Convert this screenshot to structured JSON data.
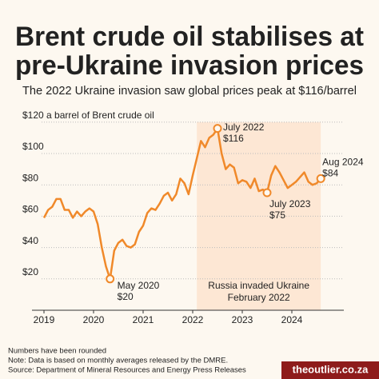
{
  "chart_data": {
    "type": "line",
    "title": [
      "Brent crude oil stabilises at",
      "pre-Ukraine invasion prices"
    ],
    "subtitle": "The 2022 Ukraine invasion saw global prices peak at $116/barrel",
    "x": [
      "2019-01",
      "2019-02",
      "2019-03",
      "2019-04",
      "2019-05",
      "2019-06",
      "2019-07",
      "2019-08",
      "2019-09",
      "2019-10",
      "2019-11",
      "2019-12",
      "2020-01",
      "2020-02",
      "2020-03",
      "2020-04",
      "2020-05",
      "2020-06",
      "2020-07",
      "2020-08",
      "2020-09",
      "2020-10",
      "2020-11",
      "2020-12",
      "2021-01",
      "2021-02",
      "2021-03",
      "2021-04",
      "2021-05",
      "2021-06",
      "2021-07",
      "2021-08",
      "2021-09",
      "2021-10",
      "2021-11",
      "2021-12",
      "2022-01",
      "2022-02",
      "2022-03",
      "2022-04",
      "2022-05",
      "2022-06",
      "2022-07",
      "2022-08",
      "2022-09",
      "2022-10",
      "2022-11",
      "2022-12",
      "2023-01",
      "2023-02",
      "2023-03",
      "2023-04",
      "2023-05",
      "2023-06",
      "2023-07",
      "2023-08",
      "2023-09",
      "2023-10",
      "2023-11",
      "2023-12",
      "2024-01",
      "2024-02",
      "2024-03",
      "2024-04",
      "2024-05",
      "2024-06",
      "2024-07",
      "2024-08"
    ],
    "series": [
      {
        "name": "Brent crude oil",
        "color": "#f0892a",
        "values": [
          59,
          64,
          66,
          71,
          71,
          64,
          64,
          59,
          63,
          60,
          63,
          65,
          63,
          55,
          40,
          28,
          20,
          38,
          43,
          45,
          41,
          40,
          42,
          50,
          54,
          62,
          65,
          64,
          68,
          73,
          75,
          70,
          74,
          84,
          81,
          74,
          86,
          97,
          108,
          104,
          110,
          112,
          116,
          100,
          90,
          93,
          91,
          81,
          83,
          82,
          78,
          84,
          76,
          77,
          75,
          86,
          92,
          88,
          83,
          78,
          80,
          82,
          85,
          88,
          82,
          80,
          81,
          84
        ],
        "value_labels": [
          null,
          null,
          null,
          null,
          null,
          null,
          null,
          null,
          null,
          null,
          null,
          null,
          null,
          null,
          null,
          null,
          "$20",
          null,
          null,
          null,
          null,
          null,
          null,
          null,
          null,
          null,
          null,
          null,
          null,
          null,
          null,
          null,
          null,
          null,
          null,
          null,
          null,
          null,
          null,
          null,
          null,
          null,
          "$116",
          null,
          null,
          null,
          null,
          null,
          null,
          null,
          null,
          null,
          null,
          null,
          "$75",
          null,
          null,
          null,
          null,
          null,
          null,
          null,
          null,
          null,
          null,
          null,
          null,
          "$84"
        ],
        "point_notes": [
          null,
          null,
          null,
          null,
          null,
          null,
          null,
          null,
          null,
          null,
          null,
          null,
          null,
          null,
          null,
          null,
          "May 2020",
          null,
          null,
          null,
          null,
          null,
          null,
          null,
          null,
          null,
          null,
          null,
          null,
          null,
          null,
          null,
          null,
          null,
          null,
          null,
          null,
          null,
          null,
          null,
          null,
          null,
          "July 2022",
          null,
          null,
          null,
          null,
          null,
          null,
          null,
          null,
          null,
          null,
          null,
          "July 2023",
          null,
          null,
          null,
          null,
          null,
          null,
          null,
          null,
          null,
          null,
          null,
          null,
          "Aug 2024"
        ]
      }
    ],
    "xticks": [
      2019,
      2020,
      2021,
      2022,
      2023,
      2024
    ],
    "ylim": [
      0,
      120
    ],
    "yticks": [
      {
        "value": 20,
        "label": "$20"
      },
      {
        "value": 40,
        "label": "$40"
      },
      {
        "value": 60,
        "label": "$60"
      },
      {
        "value": 80,
        "label": "$80"
      },
      {
        "value": 100,
        "label": "$100"
      },
      {
        "value": 120,
        "label": "$120 a barrel of Brent crude oil"
      }
    ],
    "grid": true,
    "shade": {
      "from": "2022-02",
      "to": "2024-08",
      "label": [
        "Russia invaded Ukraine",
        "February 2022"
      ]
    },
    "notes": [
      "Numbers have been rounded",
      "Note: Data is based on monthly averages released by the DMRE.",
      "Source: Department of Mineral Resources and Energy Press Releases"
    ],
    "brand": "theoutlier.co.za"
  }
}
